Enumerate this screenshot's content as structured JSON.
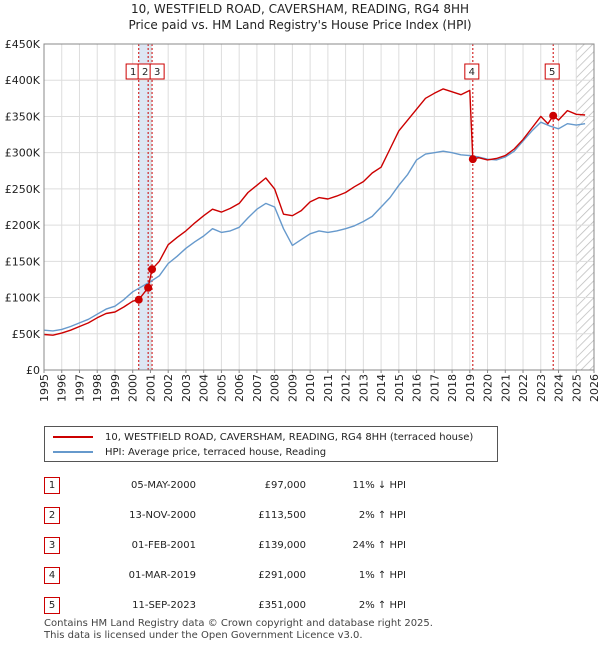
{
  "title_line1": "10, WESTFIELD ROAD, CAVERSHAM, READING, RG4 8HH",
  "title_line2": "Price paid vs. HM Land Registry's House Price Index (HPI)",
  "colors": {
    "property": "#cc0000",
    "hpi": "#6699cc",
    "shade": "#dde6f3",
    "hatch": "#bbbbbb"
  },
  "chart_data": {
    "type": "line",
    "title": "10, WESTFIELD ROAD, CAVERSHAM, READING, RG4 8HH",
    "subtitle": "Price paid vs. HM Land Registry's House Price Index (HPI)",
    "xlabel": "",
    "ylabel": "",
    "xlim": [
      1995,
      2026
    ],
    "ylim": [
      0,
      450000
    ],
    "x_ticks": [
      1995,
      1996,
      1997,
      1998,
      1999,
      2000,
      2001,
      2002,
      2003,
      2004,
      2005,
      2006,
      2007,
      2008,
      2009,
      2010,
      2011,
      2012,
      2013,
      2014,
      2015,
      2016,
      2017,
      2018,
      2019,
      2020,
      2021,
      2022,
      2023,
      2024,
      2025,
      2026
    ],
    "y_ticks": [
      0,
      50000,
      100000,
      150000,
      200000,
      250000,
      300000,
      350000,
      400000,
      450000
    ],
    "y_tick_labels": [
      "£0",
      "£50K",
      "£100K",
      "£150K",
      "£200K",
      "£250K",
      "£300K",
      "£350K",
      "£400K",
      "£450K"
    ],
    "grid": true,
    "shaded_span": [
      2000.34,
      2001.09
    ],
    "hatched_from": 2025.0,
    "series": [
      {
        "name": "10, WESTFIELD ROAD, CAVERSHAM, READING, RG4 8HH (terraced house)",
        "x": [
          1995,
          1995.5,
          1996,
          1996.5,
          1997,
          1997.5,
          1998,
          1998.5,
          1999,
          1999.5,
          2000,
          2000.34,
          2000.87,
          2001.09,
          2001.5,
          2002,
          2002.5,
          2003,
          2003.5,
          2004,
          2004.5,
          2005,
          2005.5,
          2006,
          2006.5,
          2007,
          2007.5,
          2008,
          2008.5,
          2009,
          2009.5,
          2010,
          2010.5,
          2011,
          2011.5,
          2012,
          2012.5,
          2013,
          2013.5,
          2014,
          2014.5,
          2015,
          2015.5,
          2016,
          2016.5,
          2017,
          2017.5,
          2018,
          2018.5,
          2019.0,
          2019.17,
          2019.5,
          2020,
          2020.5,
          2021,
          2021.5,
          2022,
          2022.5,
          2023,
          2023.4,
          2023.7,
          2024,
          2024.5,
          2025,
          2025.5
        ],
        "values": [
          49000,
          48000,
          51000,
          55000,
          60000,
          65000,
          72000,
          78000,
          80000,
          87000,
          95000,
          97000,
          113500,
          139000,
          150000,
          173000,
          183000,
          192000,
          203000,
          213000,
          222000,
          218000,
          223000,
          230000,
          245000,
          255000,
          265000,
          250000,
          215000,
          213000,
          220000,
          232000,
          238000,
          236000,
          240000,
          245000,
          253000,
          260000,
          272000,
          280000,
          305000,
          330000,
          345000,
          360000,
          375000,
          382000,
          388000,
          384000,
          380000,
          386000,
          291000,
          293000,
          290000,
          292000,
          296000,
          305000,
          318000,
          334000,
          350000,
          340000,
          351000,
          345000,
          358000,
          353000,
          352000
        ]
      },
      {
        "name": "HPI: Average price, terraced house, Reading",
        "x": [
          1995,
          1995.5,
          1996,
          1996.5,
          1997,
          1997.5,
          1998,
          1998.5,
          1999,
          1999.5,
          2000,
          2000.5,
          2001,
          2001.5,
          2002,
          2002.5,
          2003,
          2003.5,
          2004,
          2004.5,
          2005,
          2005.5,
          2006,
          2006.5,
          2007,
          2007.5,
          2008,
          2008.5,
          2009,
          2009.5,
          2010,
          2010.5,
          2011,
          2011.5,
          2012,
          2012.5,
          2013,
          2013.5,
          2014,
          2014.5,
          2015,
          2015.5,
          2016,
          2016.5,
          2017,
          2017.5,
          2018,
          2018.5,
          2019,
          2019.5,
          2020,
          2020.5,
          2021,
          2021.5,
          2022,
          2022.5,
          2023,
          2023.5,
          2024,
          2024.5,
          2025,
          2025.5
        ],
        "values": [
          55000,
          54000,
          56000,
          60000,
          65000,
          70000,
          77000,
          84000,
          88000,
          97000,
          108000,
          115000,
          122000,
          130000,
          147000,
          157000,
          168000,
          177000,
          185000,
          195000,
          190000,
          192000,
          197000,
          210000,
          222000,
          230000,
          225000,
          195000,
          172000,
          180000,
          188000,
          192000,
          190000,
          192000,
          195000,
          199000,
          205000,
          212000,
          225000,
          238000,
          255000,
          270000,
          290000,
          298000,
          300000,
          302000,
          300000,
          297000,
          296000,
          294000,
          291000,
          290000,
          294000,
          302000,
          316000,
          330000,
          342000,
          337000,
          333000,
          340000,
          338000,
          340000
        ]
      }
    ],
    "transactions": [
      {
        "label": "1",
        "x": 2000.34,
        "value": 97000
      },
      {
        "label": "2",
        "x": 2000.87,
        "value": 113500
      },
      {
        "label": "3",
        "x": 2001.09,
        "value": 139000
      },
      {
        "label": "4",
        "x": 2019.17,
        "value": 291000
      },
      {
        "label": "5",
        "x": 2023.7,
        "value": 351000
      }
    ]
  },
  "legend": {
    "property": "10, WESTFIELD ROAD, CAVERSHAM, READING, RG4 8HH (terraced house)",
    "hpi": "HPI: Average price, terraced house, Reading"
  },
  "table": [
    {
      "num": "1",
      "date": "05-MAY-2000",
      "price": "£97,000",
      "diff": "11% ↓ HPI"
    },
    {
      "num": "2",
      "date": "13-NOV-2000",
      "price": "£113,500",
      "diff": "2% ↑ HPI"
    },
    {
      "num": "3",
      "date": "01-FEB-2001",
      "price": "£139,000",
      "diff": "24% ↑ HPI"
    },
    {
      "num": "4",
      "date": "01-MAR-2019",
      "price": "£291,000",
      "diff": "1% ↑ HPI"
    },
    {
      "num": "5",
      "date": "11-SEP-2023",
      "price": "£351,000",
      "diff": "2% ↑ HPI"
    }
  ],
  "footer_line1": "Contains HM Land Registry data © Crown copyright and database right 2025.",
  "footer_line2": "This data is licensed under the Open Government Licence v3.0."
}
